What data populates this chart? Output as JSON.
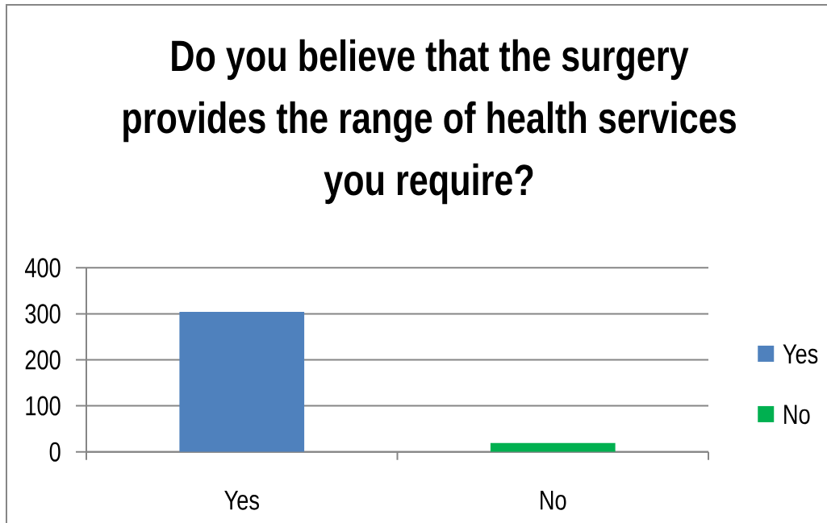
{
  "chart_data": {
    "type": "bar",
    "title": "Do you believe that the surgery provides the range of health services you require?",
    "categories": [
      "Yes",
      "No"
    ],
    "series": [
      {
        "name": "Yes",
        "color": "#4f81bd",
        "values": [
          304,
          null
        ]
      },
      {
        "name": "No",
        "color": "#00b050",
        "values": [
          null,
          19
        ]
      }
    ],
    "ylim": [
      0,
      400
    ],
    "yticks": [
      0,
      100,
      200,
      300,
      400
    ],
    "grid": "y",
    "legend": "right"
  }
}
